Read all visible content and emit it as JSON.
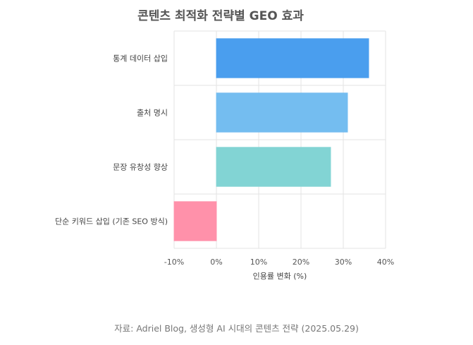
{
  "chart_data": {
    "type": "bar",
    "orientation": "horizontal",
    "title": "콘텐츠 최적화 전략별 GEO 효과",
    "categories": [
      "통계 데이터 삽입",
      "출처 명시",
      "문장 유창성 향상",
      "단순 키워드 삽입 (기존 SEO 방식)"
    ],
    "values": [
      36,
      31,
      27,
      -10
    ],
    "colors": [
      "#4a9eee",
      "#74bdf0",
      "#82d4d4",
      "#ff91aa"
    ],
    "xlabel": "인용률 변화 (%)",
    "ylabel": "",
    "xlim": [
      -10,
      40
    ],
    "xticks": [
      -10,
      0,
      10,
      20,
      30,
      40
    ],
    "tick_suffix": "%",
    "grid": true
  },
  "source_text": "자료: Adriel Blog, 생성형 AI 시대의 콘텐츠 전략 (2025.05.29)"
}
